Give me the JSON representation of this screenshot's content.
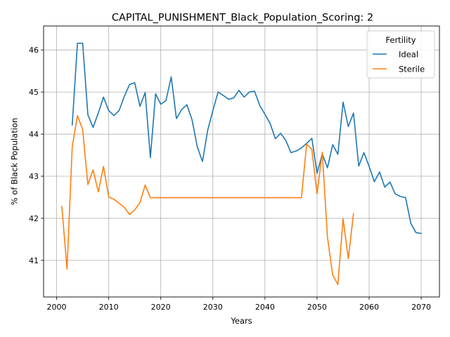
{
  "chart_data": {
    "type": "line",
    "title": "CAPITAL_PUNISHMENT_Black_Population_Scoring: 2",
    "xlabel": "Years",
    "ylabel": "% of Black Population",
    "xlim": [
      1997.5,
      2073.5
    ],
    "ylim": [
      40.13,
      46.57
    ],
    "grid": true,
    "x_ticks": [
      2000,
      2010,
      2020,
      2030,
      2040,
      2050,
      2060,
      2070
    ],
    "y_ticks": [
      41,
      42,
      43,
      44,
      45,
      46
    ],
    "legend": {
      "title": "Fertility",
      "placement": "top-right"
    },
    "series": [
      {
        "name": "Ideal",
        "color": "#1f77b4",
        "x": [
          2003,
          2004,
          2005,
          2006,
          2007,
          2008,
          2009,
          2010,
          2011,
          2012,
          2013,
          2014,
          2015,
          2016,
          2017,
          2018,
          2019,
          2020,
          2021,
          2022,
          2023,
          2024,
          2025,
          2026,
          2027,
          2028,
          2029,
          2030,
          2031,
          2032,
          2033,
          2034,
          2035,
          2036,
          2037,
          2038,
          2039,
          2040,
          2041,
          2042,
          2043,
          2044,
          2045,
          2046,
          2047,
          2048,
          2049,
          2050,
          2051,
          2052,
          2053,
          2054,
          2055,
          2056,
          2057,
          2058,
          2059,
          2060,
          2061,
          2062,
          2063,
          2064,
          2065,
          2066,
          2067,
          2068,
          2069,
          2070
        ],
        "values": [
          44.22,
          46.16,
          46.16,
          44.46,
          44.16,
          44.5,
          44.88,
          44.56,
          44.44,
          44.56,
          44.9,
          45.18,
          45.22,
          44.66,
          44.99,
          43.44,
          44.96,
          44.71,
          44.8,
          45.36,
          44.37,
          44.58,
          44.7,
          44.34,
          43.7,
          43.35,
          44.09,
          44.56,
          45.0,
          44.92,
          44.83,
          44.86,
          45.04,
          44.88,
          45.0,
          45.02,
          44.68,
          44.47,
          44.25,
          43.89,
          44.02,
          43.85,
          43.56,
          43.6,
          43.67,
          43.78,
          43.9,
          43.07,
          43.53,
          43.2,
          43.75,
          43.52,
          44.76,
          44.18,
          44.5,
          43.24,
          43.56,
          43.23,
          42.87,
          43.1,
          42.74,
          42.86,
          42.58,
          42.52,
          42.49,
          41.88,
          41.66,
          41.64
        ]
      },
      {
        "name": "Sterile",
        "color": "#ff7f0e",
        "x": [
          2001,
          2002,
          2003,
          2004,
          2005,
          2006,
          2007,
          2008,
          2009,
          2010,
          2011,
          2012,
          2013,
          2014,
          2015,
          2016,
          2017,
          2018,
          2019,
          2020,
          2025,
          2030,
          2035,
          2040,
          2045,
          2046,
          2047,
          2048,
          2049,
          2050,
          2051,
          2052,
          2053,
          2054,
          2055,
          2056,
          2057
        ],
        "values": [
          42.28,
          40.79,
          43.7,
          44.44,
          44.11,
          42.8,
          43.15,
          42.63,
          43.23,
          42.51,
          42.45,
          42.36,
          42.26,
          42.09,
          42.2,
          42.37,
          42.79,
          42.49,
          42.49,
          42.49,
          42.49,
          42.49,
          42.49,
          42.49,
          42.49,
          42.49,
          42.49,
          43.76,
          43.64,
          42.58,
          43.57,
          41.55,
          40.65,
          40.43,
          41.99,
          41.04,
          42.11
        ]
      }
    ]
  }
}
